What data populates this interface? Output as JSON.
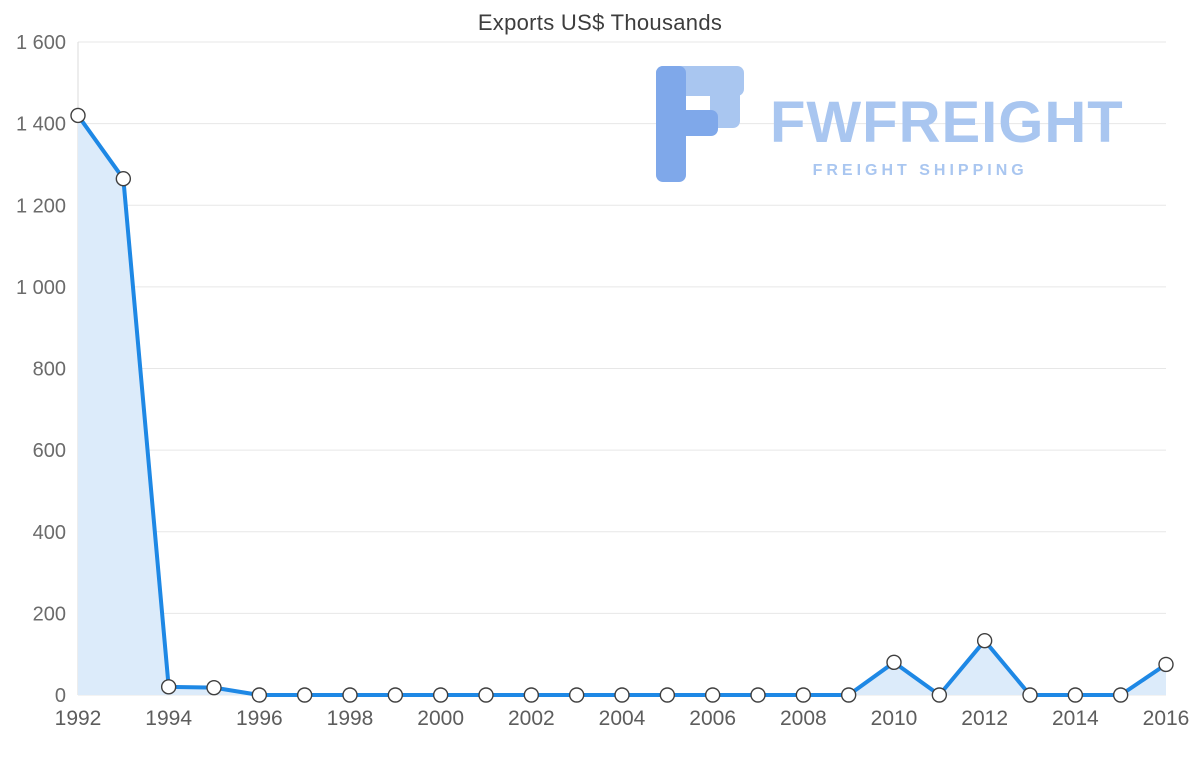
{
  "title": "Exports US$ Thousands",
  "watermark": {
    "brand": "FWFREIGHT",
    "tagline": "FREIGHT SHIPPING"
  },
  "colors": {
    "line": "#1E88E5",
    "area": "#DCEBFA",
    "grid": "#E7E7E7",
    "axis_line": "#DBDBDB",
    "y_tick_text": "#6B6B6B",
    "x_tick_text": "#5D5D5D",
    "title_text": "#3D3D3D",
    "point_fill": "#FFFFFF",
    "point_stroke": "#3F3F3F",
    "watermark_text": "#A9C6F0",
    "logo_primary": "#7FA8EA",
    "logo_secondary": "#A9C6F0"
  },
  "chart_data": {
    "type": "area",
    "title": "Exports US$ Thousands",
    "xlabel": "",
    "ylabel": "",
    "x": [
      1992,
      1993,
      1994,
      1995,
      1996,
      1997,
      1998,
      1999,
      2000,
      2001,
      2002,
      2003,
      2004,
      2005,
      2006,
      2007,
      2008,
      2009,
      2010,
      2011,
      2012,
      2013,
      2014,
      2015,
      2016
    ],
    "values": [
      1420,
      1265,
      20,
      18,
      0,
      0,
      0,
      0,
      0,
      0,
      0,
      0,
      0,
      0,
      0,
      0,
      0,
      0,
      80,
      0,
      133,
      0,
      0,
      0,
      75
    ],
    "ylim": [
      0,
      1600
    ],
    "y_ticks": [
      0,
      200,
      400,
      600,
      800,
      1000,
      1200,
      1400,
      1600
    ],
    "y_tick_labels": [
      "0",
      "200",
      "400",
      "600",
      "800",
      "1 000",
      "1 200",
      "1 400",
      "1 600"
    ],
    "x_ticks": [
      1992,
      1994,
      1996,
      1998,
      2000,
      2002,
      2004,
      2006,
      2008,
      2010,
      2012,
      2014,
      2016
    ],
    "grid": "horizontal",
    "legend": "none"
  }
}
